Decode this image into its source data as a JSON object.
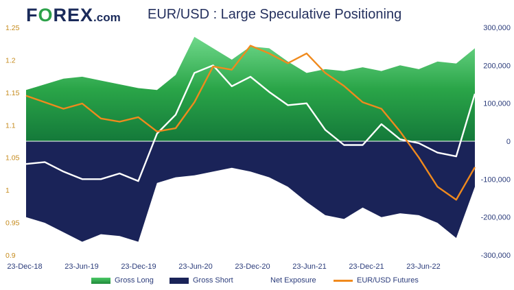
{
  "logo": {
    "brand_prefix": "F",
    "brand_o": "O",
    "brand_suffix": "REX",
    "brand_domain": ".com"
  },
  "colors": {
    "gross_long": "#2da24a",
    "gross_short": "#1a2358",
    "net_exposure": "#ffffff",
    "eurusd": "#f08a1d"
  },
  "chart_data": {
    "type": "area",
    "title": "EUR/USD : Large Speculative Positioning",
    "x_ticks": [
      "23-Dec-18",
      "23-Jun-19",
      "23-Dec-19",
      "23-Jun-20",
      "23-Dec-20",
      "23-Jun-21",
      "23-Dec-21",
      "23-Jun-22"
    ],
    "x": [
      "Dec-18",
      "Feb-19",
      "Apr-19",
      "Jun-19",
      "Aug-19",
      "Oct-19",
      "Dec-19",
      "Feb-20",
      "Apr-20",
      "Jun-20",
      "Aug-20",
      "Oct-20",
      "Dec-20",
      "Feb-21",
      "Apr-21",
      "Jun-21",
      "Aug-21",
      "Oct-21",
      "Dec-21",
      "Feb-22",
      "Apr-22",
      "Jun-22",
      "Aug-22",
      "Oct-22",
      "Dec-22"
    ],
    "y_left": {
      "ticks": [
        "0.9",
        "0.95",
        "1",
        "1.05",
        "1.1",
        "1.15",
        "1.2",
        "1.25"
      ],
      "ylim": [
        0.9,
        1.25
      ]
    },
    "y_right": {
      "ticks": [
        "-300,000",
        "-200,000",
        "-100,000",
        "0",
        "100,000",
        "200,000",
        "300,000"
      ],
      "ylim": [
        -300000,
        300000
      ]
    },
    "series": [
      {
        "name": "Gross Long",
        "axis": "right",
        "values": [
          135000,
          150000,
          165000,
          170000,
          160000,
          150000,
          140000,
          135000,
          175000,
          275000,
          245000,
          215000,
          250000,
          245000,
          210000,
          180000,
          190000,
          185000,
          195000,
          185000,
          200000,
          190000,
          210000,
          205000,
          245000
        ]
      },
      {
        "name": "Gross Short",
        "axis": "right",
        "values": [
          -200000,
          -215000,
          -240000,
          -265000,
          -245000,
          -250000,
          -265000,
          -110000,
          -95000,
          -90000,
          -80000,
          -70000,
          -80000,
          -95000,
          -120000,
          -160000,
          -195000,
          -205000,
          -175000,
          -200000,
          -190000,
          -195000,
          -215000,
          -255000,
          -120000
        ]
      },
      {
        "name": "Net Exposure",
        "axis": "right",
        "values": [
          -60000,
          -55000,
          -80000,
          -100000,
          -100000,
          -85000,
          -105000,
          20000,
          70000,
          180000,
          200000,
          145000,
          170000,
          130000,
          95000,
          100000,
          30000,
          -10000,
          -10000,
          45000,
          5000,
          -5000,
          -30000,
          -40000,
          125000
        ]
      },
      {
        "name": "EUR/USD Futures",
        "axis": "left",
        "values": [
          1.145,
          1.135,
          1.125,
          1.133,
          1.11,
          1.105,
          1.112,
          1.09,
          1.095,
          1.135,
          1.19,
          1.185,
          1.222,
          1.21,
          1.195,
          1.21,
          1.18,
          1.16,
          1.135,
          1.125,
          1.09,
          1.05,
          1.005,
          0.985,
          1.035
        ]
      }
    ]
  },
  "legend": {
    "gross_long": "Gross Long",
    "gross_short": "Gross Short",
    "net_exposure": "Net Exposure",
    "eurusd": "EUR/USD Futures"
  }
}
